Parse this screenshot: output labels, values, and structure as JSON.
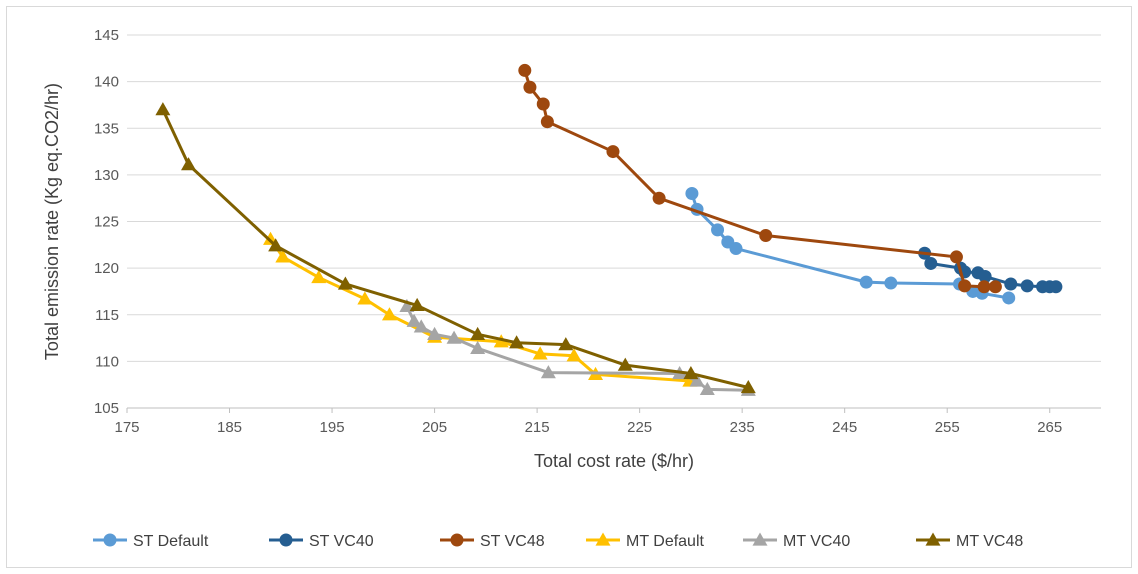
{
  "chart_data": {
    "type": "scatter",
    "title": "",
    "xlabel": "Total cost rate ($/hr)",
    "ylabel": "Total emission rate (Kg eq.CO2/hr)",
    "xlim": [
      175,
      270
    ],
    "ylim": [
      105,
      145
    ],
    "x_ticks": [
      175,
      185,
      195,
      205,
      215,
      225,
      235,
      245,
      255,
      265
    ],
    "y_ticks": [
      105,
      110,
      115,
      120,
      125,
      130,
      135,
      140,
      145
    ],
    "grid": "horizontal",
    "legend_position": "bottom",
    "series": [
      {
        "name": "ST Default",
        "color": "#5b9bd5",
        "marker": "circle",
        "points": [
          [
            230.1,
            128.0
          ],
          [
            230.6,
            126.3
          ],
          [
            232.6,
            124.1
          ],
          [
            233.6,
            122.8
          ],
          [
            234.4,
            122.1
          ],
          [
            247.1,
            118.5
          ],
          [
            249.5,
            118.4
          ],
          [
            256.2,
            118.3
          ],
          [
            257.5,
            117.5
          ],
          [
            258.4,
            117.3
          ],
          [
            261.0,
            116.8
          ]
        ]
      },
      {
        "name": "ST VC40",
        "color": "#255e91",
        "marker": "circle",
        "points": [
          [
            252.8,
            121.6
          ],
          [
            253.4,
            120.5
          ],
          [
            256.3,
            120.0
          ],
          [
            256.7,
            119.6
          ],
          [
            258.0,
            119.5
          ],
          [
            258.7,
            119.1
          ],
          [
            261.2,
            118.3
          ],
          [
            262.8,
            118.1
          ],
          [
            264.3,
            118.0
          ],
          [
            265.0,
            118.0
          ],
          [
            265.6,
            118.0
          ]
        ]
      },
      {
        "name": "ST VC48",
        "color": "#9e480e",
        "marker": "circle",
        "points": [
          [
            213.8,
            141.2
          ],
          [
            214.3,
            139.4
          ],
          [
            215.6,
            137.6
          ],
          [
            216.0,
            135.7
          ],
          [
            222.4,
            132.5
          ],
          [
            226.9,
            127.5
          ],
          [
            237.3,
            123.5
          ],
          [
            255.9,
            121.2
          ],
          [
            256.7,
            118.1
          ],
          [
            258.6,
            118.0
          ],
          [
            259.7,
            118.0
          ]
        ]
      },
      {
        "name": "MT Default",
        "color": "#ffc000",
        "marker": "triangle",
        "points": [
          [
            189.0,
            123.1
          ],
          [
            190.2,
            121.2
          ],
          [
            193.7,
            119.0
          ],
          [
            198.2,
            116.7
          ],
          [
            200.6,
            115.0
          ],
          [
            205.0,
            112.6
          ],
          [
            211.5,
            112.1
          ],
          [
            215.3,
            110.8
          ],
          [
            218.6,
            110.6
          ],
          [
            220.7,
            108.6
          ],
          [
            229.9,
            107.9
          ]
        ]
      },
      {
        "name": "MT VC40",
        "color": "#a5a5a5",
        "marker": "triangle",
        "points": [
          [
            202.3,
            115.9
          ],
          [
            203.0,
            114.3
          ],
          [
            203.7,
            113.7
          ],
          [
            205.0,
            112.9
          ],
          [
            206.9,
            112.5
          ],
          [
            209.2,
            111.4
          ],
          [
            216.1,
            108.8
          ],
          [
            228.9,
            108.7
          ],
          [
            230.6,
            107.9
          ],
          [
            231.6,
            107.0
          ],
          [
            235.6,
            106.9
          ]
        ]
      },
      {
        "name": "MT VC48",
        "color": "#7f6000",
        "marker": "triangle",
        "points": [
          [
            178.5,
            137.0
          ],
          [
            181.0,
            131.1
          ],
          [
            189.5,
            122.4
          ],
          [
            196.3,
            118.3
          ],
          [
            203.3,
            116.0
          ],
          [
            209.2,
            112.9
          ],
          [
            213.0,
            112.0
          ],
          [
            217.8,
            111.8
          ],
          [
            223.6,
            109.6
          ],
          [
            230.0,
            108.7
          ],
          [
            235.6,
            107.2
          ]
        ]
      }
    ]
  }
}
